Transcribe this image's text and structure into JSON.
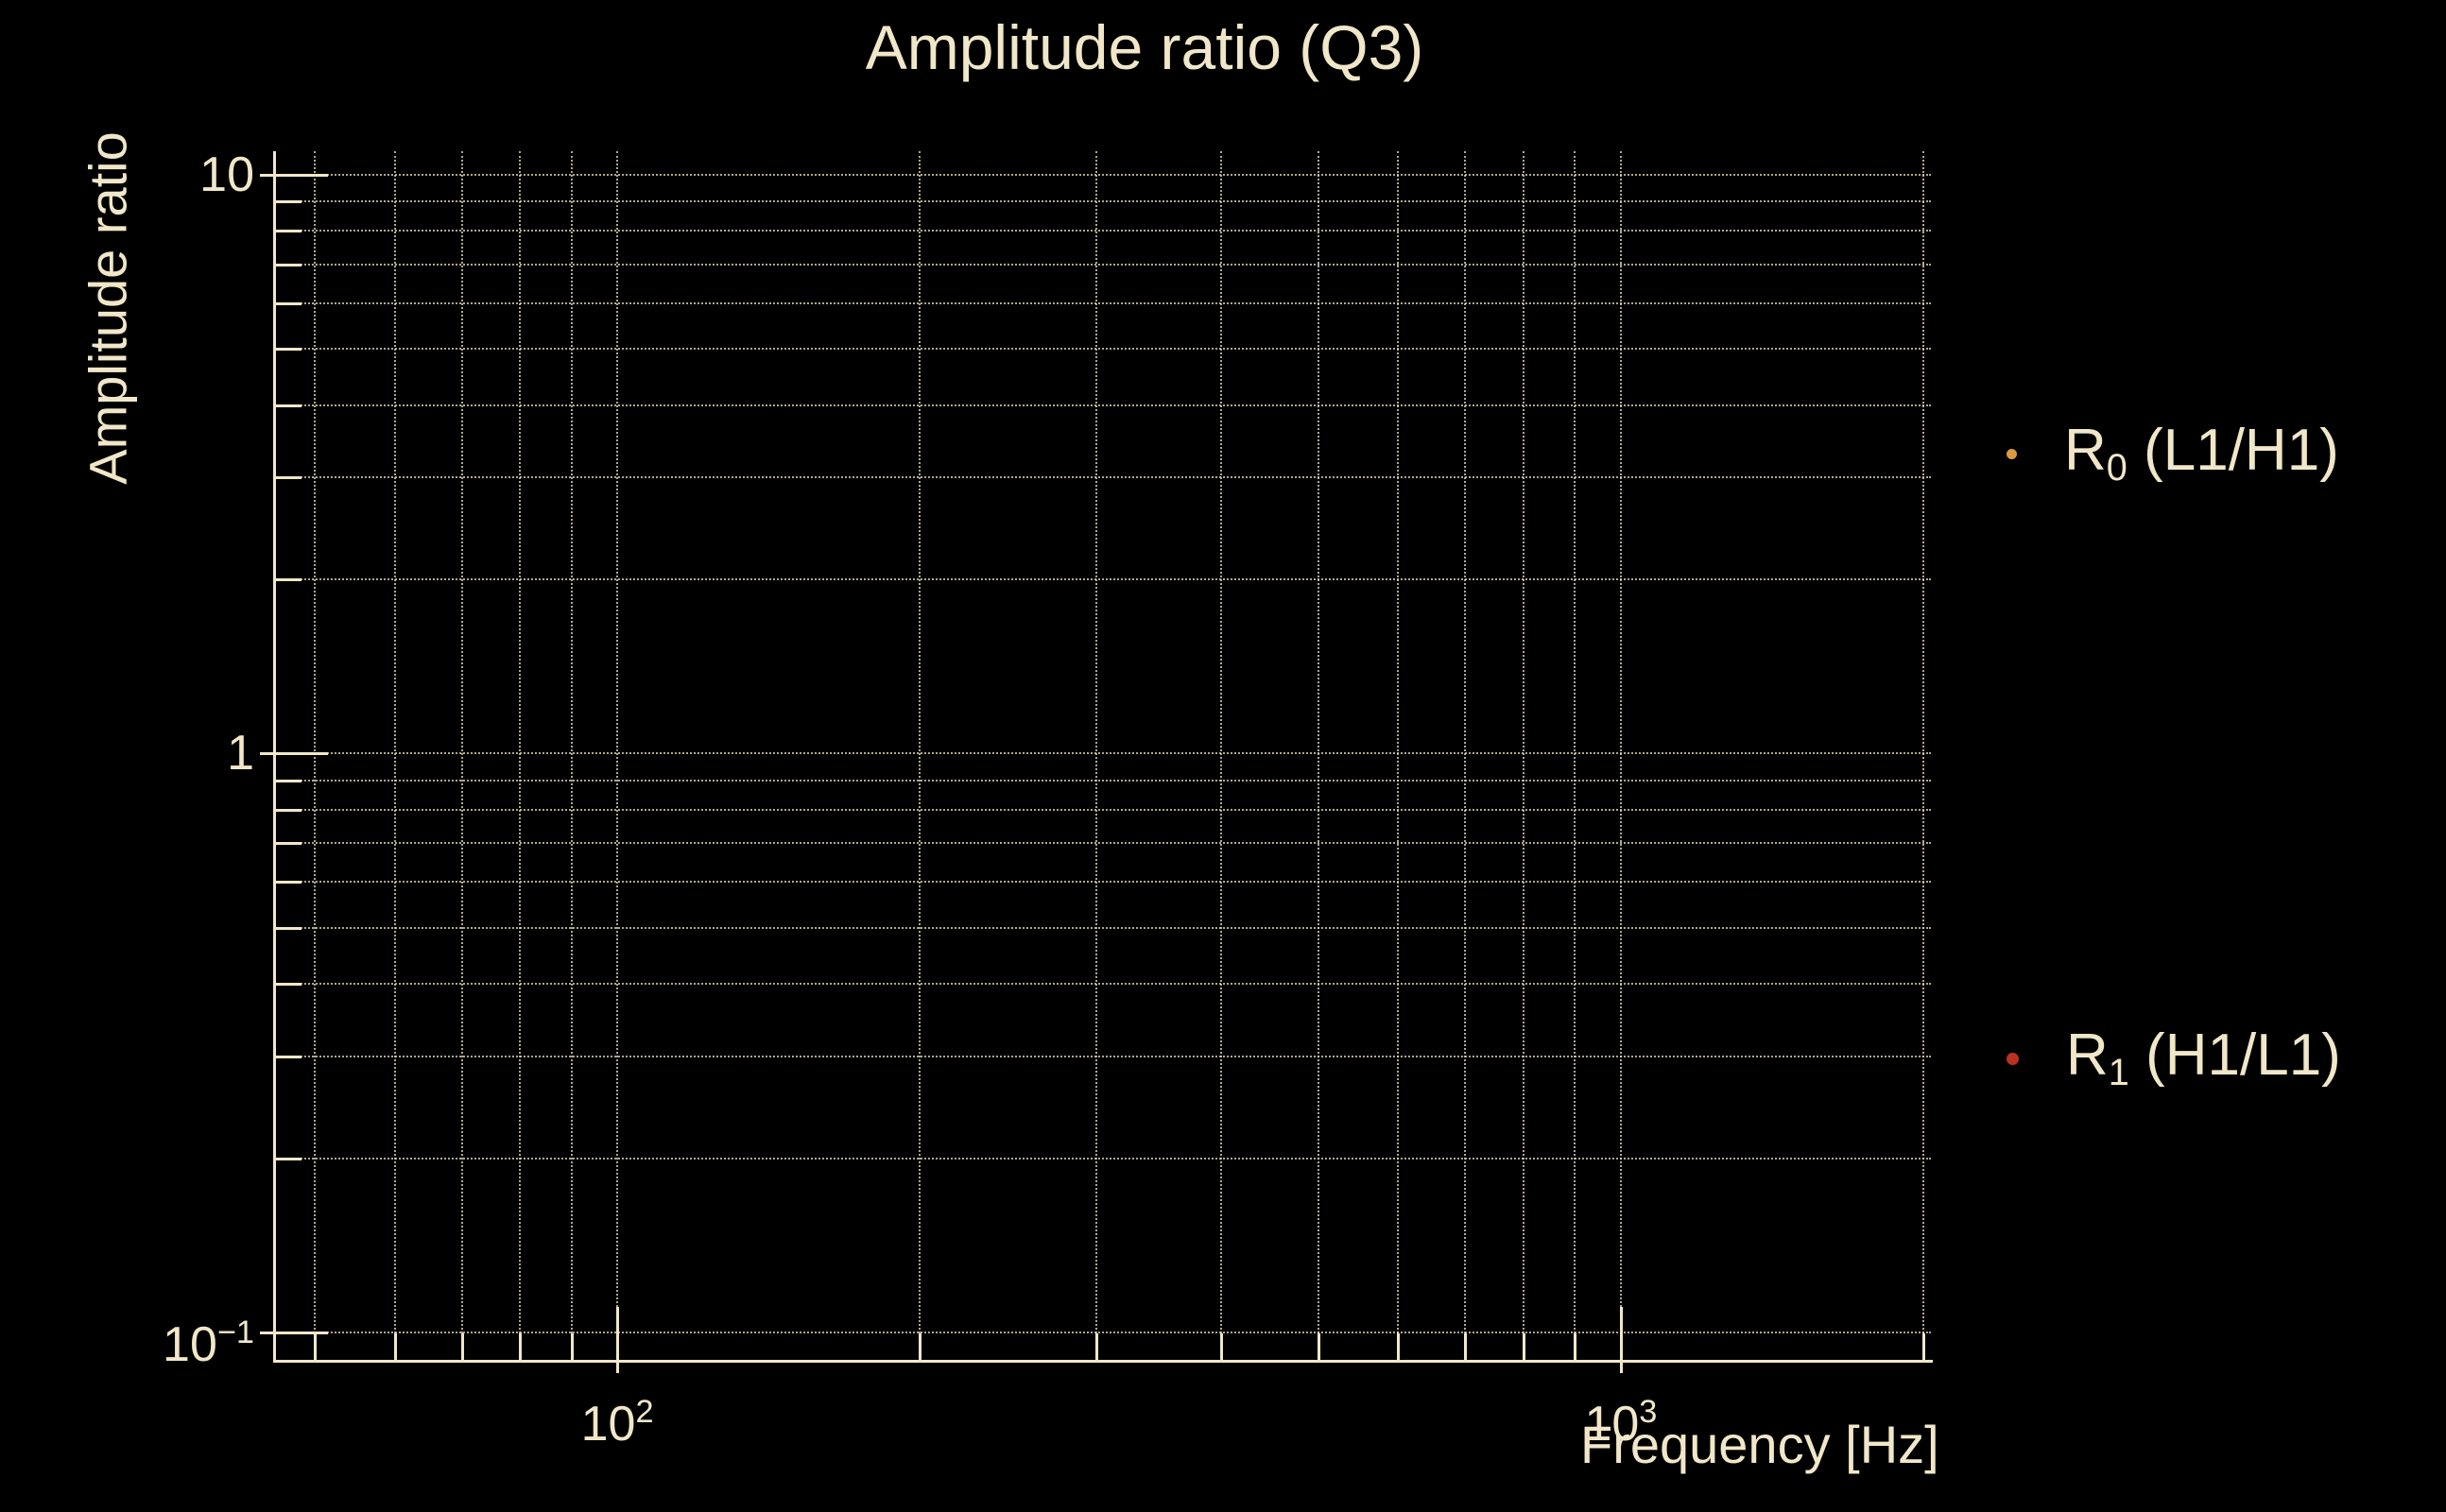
{
  "chart_data": {
    "type": "scatter",
    "title": "Amplitude ratio (Q3)",
    "xlabel": "Frequency [Hz]",
    "ylabel": "Amplitude ratio",
    "x_scale": "log",
    "y_scale": "log",
    "xlim": [
      45.6,
      2037
    ],
    "ylim": [
      0.0897,
      10.98
    ],
    "x_major_ticks": [
      100,
      1000
    ],
    "x_major_tick_labels": [
      {
        "base": "10",
        "exp": "2"
      },
      {
        "base": "10",
        "exp": "3"
      }
    ],
    "x_minor_gridlines": [
      50,
      60,
      70,
      80,
      90,
      200,
      300,
      400,
      500,
      600,
      700,
      800,
      900,
      2000
    ],
    "y_major_ticks": [
      10,
      1,
      0.1
    ],
    "y_major_tick_labels": [
      {
        "base": "10",
        "exp": ""
      },
      {
        "base": "1",
        "exp": ""
      },
      {
        "base": "10",
        "exp": "−1"
      }
    ],
    "y_minor_gridlines": [
      9,
      8,
      7,
      6,
      5,
      4,
      3,
      2,
      0.9,
      0.8,
      0.7,
      0.6,
      0.5,
      0.4,
      0.3,
      0.2
    ],
    "grid": {
      "style": "dotted",
      "which": "major-and-minor",
      "color": "#f1e7c8"
    },
    "legend_position": "outside-right",
    "series": [
      {
        "name_sym": "R",
        "name_sub": "0",
        "name_rest": " (L1/H1)",
        "marker": "dot",
        "marker_color": "#d89b40",
        "marker_size_px": 11,
        "points": []
      },
      {
        "name_sym": "R",
        "name_sub": "1",
        "name_rest": " (H1/L1)",
        "marker": "dot",
        "marker_color": "#bb3220",
        "marker_size_px": 13,
        "points": []
      }
    ]
  },
  "colors": {
    "background": "#000000",
    "foreground": "#f1e7c8"
  }
}
